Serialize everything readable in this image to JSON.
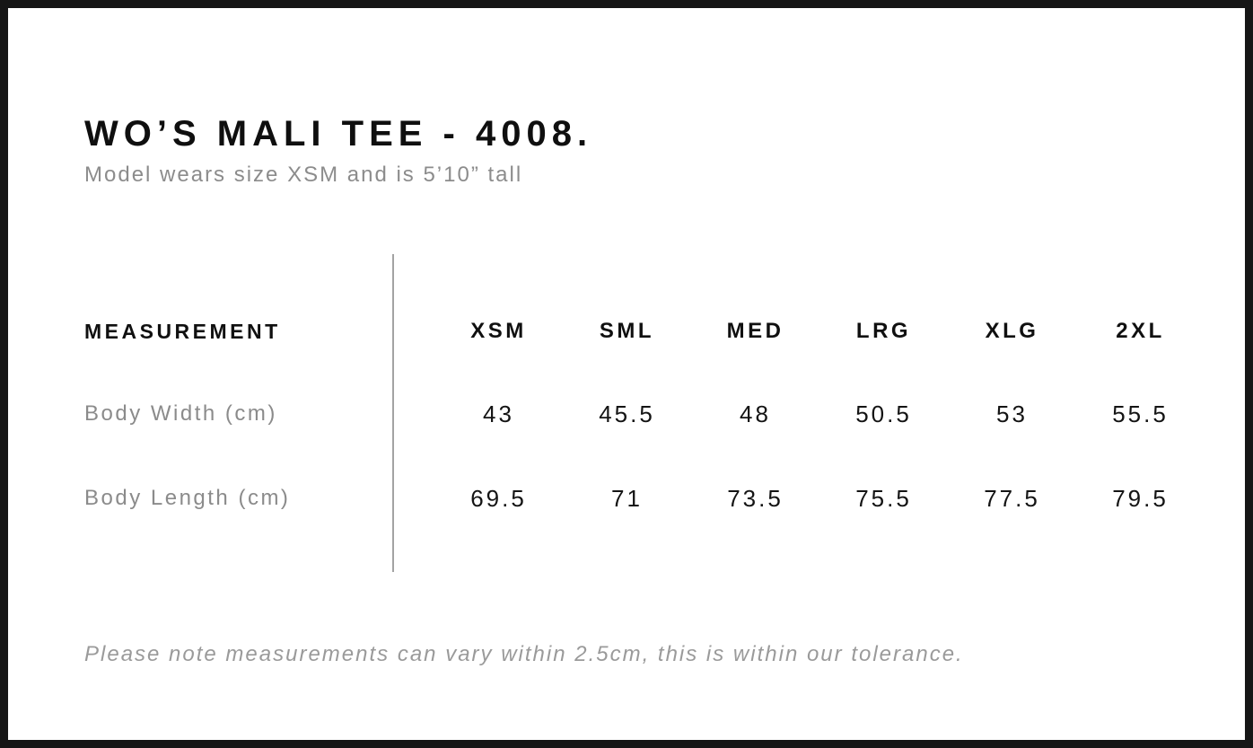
{
  "page": {
    "title": "WO’S MALI TEE - 4008.",
    "subtitle": "Model wears size XSM and is 5’10” tall",
    "footnote": "Please note measurements can vary within 2.5cm, this is within our tolerance."
  },
  "size_table": {
    "measurement_header": "MEASUREMENT",
    "size_headers": [
      "XSM",
      "SML",
      "MED",
      "LRG",
      "XLG",
      "2XL"
    ],
    "rows": [
      {
        "label": "Body Width (cm)",
        "values": [
          "43",
          "45.5",
          "48",
          "50.5",
          "53",
          "55.5"
        ]
      },
      {
        "label": "Body Length (cm)",
        "values": [
          "69.5",
          "71",
          "73.5",
          "75.5",
          "77.5",
          "79.5"
        ]
      }
    ]
  },
  "colors": {
    "frame_border": "#161616",
    "heading_text": "#0f0f0f",
    "muted_text": "#8b8b8b",
    "value_text": "#141414",
    "divider": "#a3a3a3"
  }
}
